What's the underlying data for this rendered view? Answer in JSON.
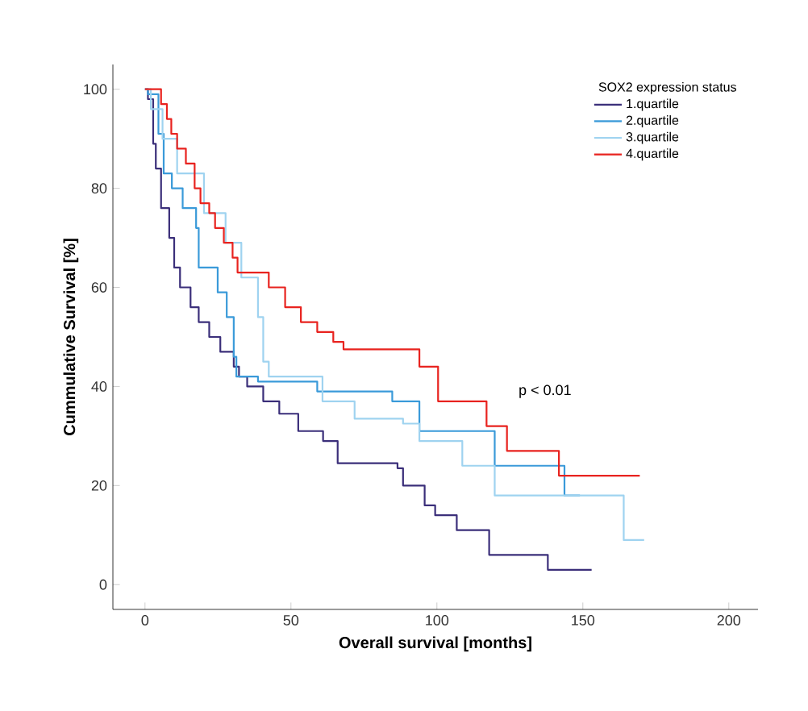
{
  "chart_data": {
    "type": "step",
    "xlabel": "Overall survival [months]",
    "ylabel": "Cummulative Survival [%]",
    "legend_title": "SOX2 expression status",
    "xlim": [
      -11,
      210
    ],
    "ylim": [
      -5,
      105
    ],
    "xticks": [
      0,
      50,
      100,
      150,
      200
    ],
    "yticks": [
      0,
      20,
      40,
      60,
      80,
      100
    ],
    "legend": "top right",
    "marker": "none",
    "line_style": "solid",
    "annotations": [
      "p < 0.01"
    ],
    "series": [
      {
        "name": "1.quartile",
        "color": "#3b2f7a",
        "x": [
          0,
          1,
          2.8,
          3.7,
          5.5,
          8.3,
          10,
          12,
          15.6,
          18.4,
          22,
          25.8,
          30.4,
          32.2,
          35,
          40.5,
          46,
          52.5,
          61,
          66,
          86.5,
          88.4,
          95.8,
          99.4,
          106.8,
          117.9,
          138,
          153
        ],
        "values": [
          100,
          98,
          89,
          84,
          76,
          70,
          64,
          60,
          56,
          53,
          50,
          47,
          44,
          42,
          40,
          37,
          34.5,
          31,
          29,
          24.5,
          23.5,
          20,
          16,
          14,
          11,
          6,
          3,
          3
        ]
      },
      {
        "name": "2.quartile",
        "color": "#3a9ad9",
        "x": [
          0,
          1,
          4.6,
          6.4,
          9.2,
          12.9,
          17.5,
          18.4,
          22,
          24.9,
          28,
          30.4,
          31.3,
          38.7,
          59,
          84.7,
          94,
          119.8,
          143.7,
          149
        ],
        "values": [
          100,
          99,
          91,
          83,
          80,
          76,
          72,
          64,
          64,
          59,
          54,
          46,
          42,
          41,
          39,
          37,
          31,
          24,
          18,
          18
        ]
      },
      {
        "name": "3.quartile",
        "color": "#9fd3f0",
        "x": [
          0,
          2,
          6,
          11,
          20.2,
          27.6,
          33,
          38.7,
          40.5,
          42.4,
          60.8,
          71.8,
          88.4,
          94,
          108.7,
          119.8,
          164,
          171
        ],
        "values": [
          100,
          96,
          90,
          83,
          75,
          69,
          62,
          54,
          45,
          42,
          37,
          33.5,
          32.5,
          29,
          24,
          18,
          9,
          9
        ]
      },
      {
        "name": "4.quartile",
        "color": "#e8231f",
        "x": [
          0,
          5.5,
          7.5,
          9,
          11,
          14,
          17,
          19,
          22,
          24,
          27,
          30,
          31.7,
          42.4,
          48,
          53.4,
          59,
          64.5,
          68,
          94,
          100.4,
          117,
          124,
          141.8,
          169.5
        ],
        "values": [
          100,
          97,
          94,
          91,
          88,
          85,
          80,
          77,
          75,
          72,
          69,
          66,
          63,
          60,
          56,
          53,
          51,
          49,
          47.5,
          44,
          37,
          32,
          27,
          22,
          22
        ]
      }
    ]
  }
}
